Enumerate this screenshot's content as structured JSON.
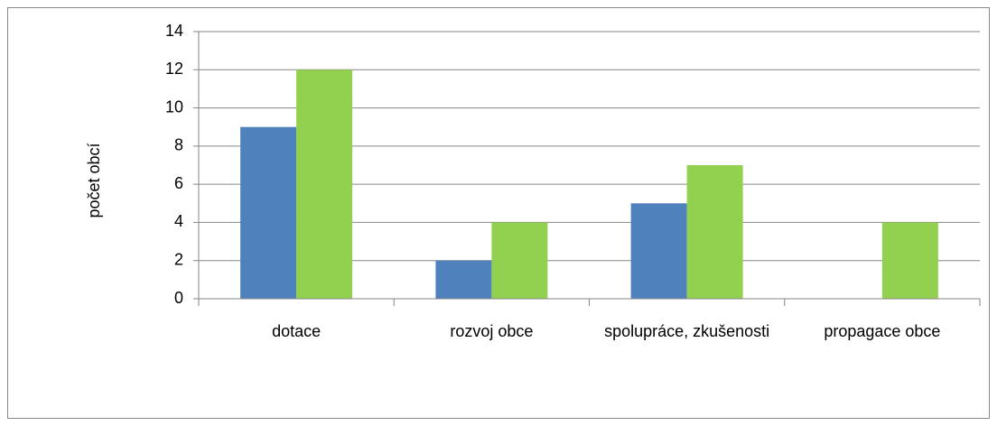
{
  "chart_data": {
    "type": "bar",
    "y_label": "počet obcí",
    "categories": [
      "dotace",
      "rozvoj obce",
      "spolupráce, zkušenosti",
      "propagace obce"
    ],
    "series": [
      {
        "color": "#4f81bd",
        "values": [
          9,
          2,
          5,
          0
        ]
      },
      {
        "color": "#92d050",
        "values": [
          12,
          4,
          7,
          4
        ]
      }
    ],
    "ylim": [
      0,
      14
    ],
    "yticks": [
      0,
      2,
      4,
      6,
      8,
      10,
      12,
      14
    ],
    "grid": true
  }
}
